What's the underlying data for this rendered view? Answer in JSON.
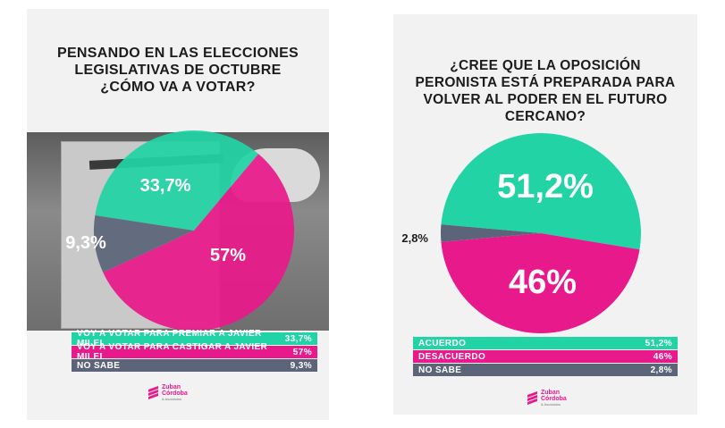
{
  "colors": {
    "green": "#22d3a5",
    "magenta": "#e8198b",
    "gray": "#5b6478"
  },
  "left": {
    "title": "PENSANDO EN LAS ELECCIONES LEGISLATIVAS DE OCTUBRE ¿CÓMO VA A VOTAR?",
    "logo": {
      "line1": "Zuban",
      "line2": "Córdoba",
      "line3": "& Asociados"
    }
  },
  "right": {
    "title": "¿CREE QUE LA OPOSICIÓN PERONISTA ESTÁ PREPARADA PARA VOLVER AL PODER EN EL FUTURO CERCANO?",
    "logo": {
      "line1": "Zuban",
      "line2": "Córdoba",
      "line3": "& Asociados"
    }
  },
  "chart_data": [
    {
      "type": "pie",
      "title": "PENSANDO EN LAS ELECCIONES LEGISLATIVAS DE OCTUBRE ¿CÓMO VA A VOTAR?",
      "slices": [
        {
          "label": "VOY A VOTAR PARA PREMIAR A JAVIER  MILEI",
          "value": 33.7,
          "display": "33,7%",
          "color": "#22d3a5"
        },
        {
          "label": "VOY A VOTAR PARA CASTIGAR A JAVIER MILEI",
          "value": 57,
          "display": "57%",
          "color": "#e8198b"
        },
        {
          "label": "NO SABE",
          "value": 9.3,
          "display": "9,3%",
          "color": "#5b6478"
        }
      ],
      "legend_position": "bottom"
    },
    {
      "type": "pie",
      "title": "¿CREE QUE LA OPOSICIÓN PERONISTA ESTÁ PREPARADA PARA VOLVER AL PODER EN EL FUTURO CERCANO?",
      "slices": [
        {
          "label": "ACUERDO",
          "value": 51.2,
          "display": "51,2%",
          "color": "#22d3a5"
        },
        {
          "label": "DESACUERDO",
          "value": 46,
          "display": "46%",
          "color": "#e8198b"
        },
        {
          "label": "NO SABE",
          "value": 2.8,
          "display": "2,8%",
          "color": "#5b6478"
        }
      ],
      "legend_position": "bottom"
    }
  ]
}
